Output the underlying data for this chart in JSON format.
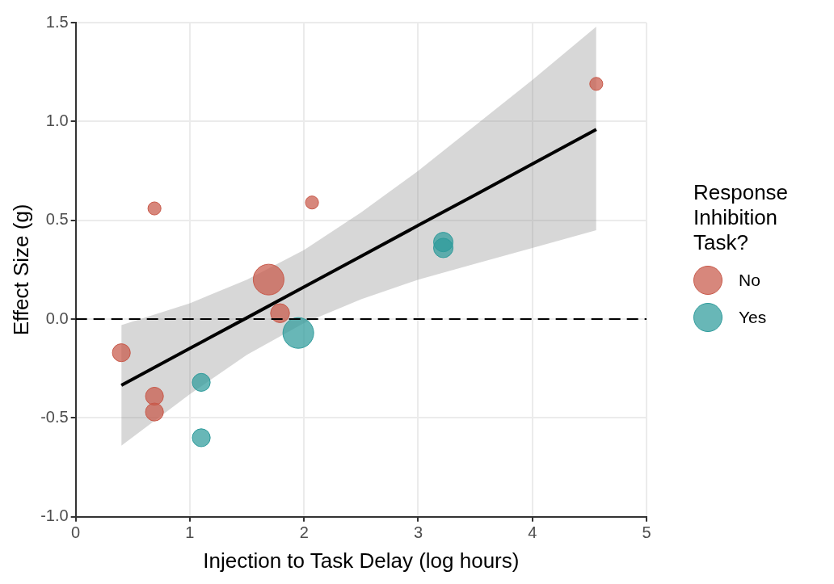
{
  "chart_data": {
    "type": "bubble",
    "xlabel": "Injection to Task Delay (log hours)",
    "ylabel": "Effect Size (g)",
    "legend_title": "Response Inhibition Task?",
    "xlim": [
      0,
      5
    ],
    "xticks": [
      0,
      1,
      2,
      3,
      4,
      5
    ],
    "ylim": [
      -1.0,
      1.5
    ],
    "yticks": [
      {
        "value": -1,
        "label": "-1.0"
      },
      {
        "value": -0.5,
        "label": "-0.5"
      },
      {
        "value": 0,
        "label": "0.0"
      },
      {
        "value": 0.5,
        "label": "0.5"
      },
      {
        "value": 1,
        "label": "1.0"
      },
      {
        "value": 1.5,
        "label": "1.5"
      }
    ],
    "grid": true,
    "legend": "right",
    "ref_lines": [
      {
        "axis": "y",
        "value": 0,
        "line_style": "dashed",
        "color": "#000000"
      }
    ],
    "series": [
      {
        "name": "No",
        "color": "#c8594a",
        "marker": "circle",
        "x": [
          4.56,
          0.69,
          2.07,
          1.69,
          1.79,
          0.4,
          0.69,
          0.69
        ],
        "values": [
          1.19,
          0.56,
          0.59,
          0.2,
          0.03,
          -0.17,
          -0.39,
          -0.47
        ],
        "sizes": [
          0.18,
          0.18,
          0.18,
          1,
          0.38,
          0.34,
          0.34,
          0.34
        ]
      },
      {
        "name": "Yes",
        "color": "#2e9b9b",
        "marker": "circle",
        "x": [
          3.22,
          3.22,
          1.95,
          1.1,
          1.1
        ],
        "values": [
          0.39,
          0.36,
          -0.07,
          -0.32,
          -0.6
        ],
        "sizes": [
          0.4,
          0.4,
          1,
          0.34,
          0.34
        ]
      },
      {
        "type": "line",
        "color": "#000000",
        "x": [
          0.4,
          1,
          1.5,
          2,
          2.5,
          3,
          3.5,
          4,
          4.56
        ],
        "values": [
          -0.335,
          -0.148,
          0.007,
          0.163,
          0.318,
          0.474,
          0.629,
          0.785,
          0.96
        ],
        "lower": [
          -0.64,
          -0.38,
          -0.18,
          -0.02,
          0.1,
          0.2,
          0.28,
          0.36,
          0.45
        ],
        "upper": [
          -0.03,
          0.08,
          0.2,
          0.35,
          0.54,
          0.75,
          0.98,
          1.21,
          1.48
        ]
      }
    ]
  }
}
